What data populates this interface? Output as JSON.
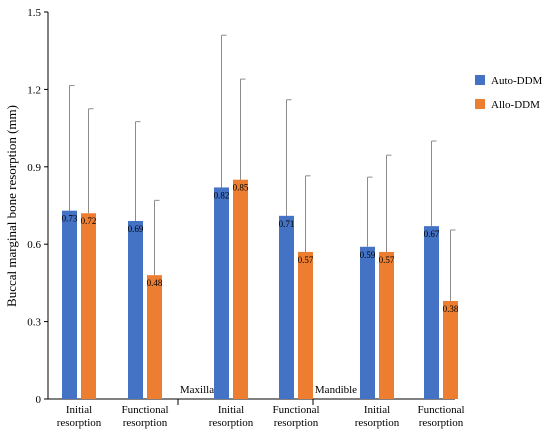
{
  "chart_data": {
    "type": "bar",
    "ylabel": "Buccal marginal bone resorption (mm)",
    "xlabel": "",
    "ylim": [
      0,
      1.5
    ],
    "yticks": [
      "0",
      "0.3",
      "0.6",
      "0.9",
      "1.2",
      "1.5"
    ],
    "grid": false,
    "legend": "right",
    "groups": [
      {
        "label": "Maxilla",
        "categories": [
          "Initial resorption",
          "Functional resorption"
        ]
      },
      {
        "label": "",
        "categories": [
          "Initial resorption",
          "Functional resorption"
        ]
      },
      {
        "label": "Mandible",
        "categories": [
          "Initial resorption",
          "Functional resorption"
        ]
      }
    ],
    "categories": [
      "Initial resorption",
      "Functional resorption",
      "Initial resorption",
      "Functional resorption",
      "Initial resorption",
      "Functional resorption"
    ],
    "series": [
      {
        "name": "Auto-DDM",
        "color": "#4472C4",
        "values": [
          0.73,
          0.69,
          0.82,
          0.71,
          0.59,
          0.67
        ],
        "labels": [
          "0.73",
          "0.69",
          "0.82",
          "0.71",
          "0.59",
          "0.67"
        ],
        "error_upper": [
          1.215,
          1.075,
          1.41,
          1.16,
          0.86,
          1.0
        ]
      },
      {
        "name": "Allo-DDM",
        "color": "#ED7D31",
        "values": [
          0.72,
          0.48,
          0.85,
          0.57,
          0.57,
          0.38
        ],
        "labels": [
          "0.72",
          "0.48",
          "0.85",
          "0.57",
          "0.57",
          "0.38"
        ],
        "error_upper": [
          1.125,
          0.77,
          1.24,
          0.865,
          0.945,
          0.655
        ]
      }
    ]
  }
}
